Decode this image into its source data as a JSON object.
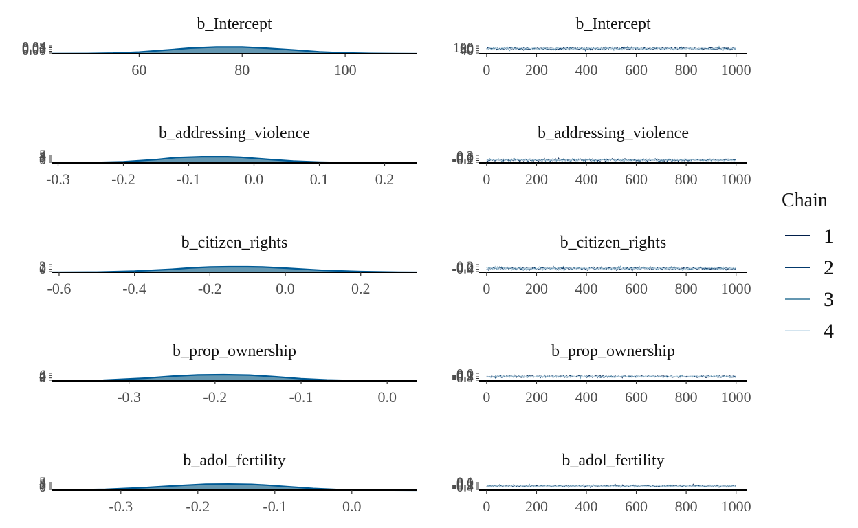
{
  "legend": {
    "title": "Chain",
    "items": [
      {
        "label": "1",
        "color": "#011f4b"
      },
      {
        "label": "2",
        "color": "#03396c"
      },
      {
        "label": "3",
        "color": "#6497b1"
      },
      {
        "label": "4",
        "color": "#d3e4ef"
      }
    ]
  },
  "colors": {
    "density_fill": "#6497b1",
    "density_line": "#005b96",
    "axis": "#000000"
  },
  "chart_data": [
    {
      "type": "area",
      "title": "b_Intercept",
      "xlim": [
        43,
        114
      ],
      "ylim": [
        0,
        0.04
      ],
      "xticks": [
        "60",
        "80",
        "100"
      ],
      "xtick_values": [
        60,
        80,
        100
      ],
      "yticks": [
        "0.00",
        "0.01",
        "0.02",
        "0.03",
        "0.04"
      ],
      "x": [
        43,
        50,
        55,
        60,
        65,
        70,
        75,
        80,
        85,
        90,
        95,
        100,
        105,
        110,
        114
      ],
      "y": [
        0.0003,
        0.001,
        0.003,
        0.008,
        0.017,
        0.027,
        0.032,
        0.032,
        0.026,
        0.018,
        0.009,
        0.004,
        0.0015,
        0.0005,
        0.0002
      ]
    },
    {
      "type": "line",
      "title": "b_Intercept",
      "xlim": [
        -30,
        1045
      ],
      "ylim": [
        40,
        100
      ],
      "xticks": [
        "0",
        "200",
        "400",
        "600",
        "800",
        "1000"
      ],
      "xtick_values": [
        0,
        200,
        400,
        600,
        800,
        1000
      ],
      "yticks": [
        "40",
        "60",
        "80",
        "100"
      ],
      "series": [
        {
          "name": "1",
          "center": 77,
          "spread": 9
        },
        {
          "name": "2",
          "center": 77,
          "spread": 9
        },
        {
          "name": "3",
          "center": 77,
          "spread": 9
        },
        {
          "name": "4",
          "center": 77,
          "spread": 9
        }
      ]
    },
    {
      "type": "area",
      "title": "b_addressing_violence",
      "xlim": [
        -0.31,
        0.25
      ],
      "ylim": [
        0,
        5
      ],
      "xticks": [
        "-0.3",
        "-0.2",
        "-0.1",
        "0.0",
        "0.1",
        "0.2"
      ],
      "xtick_values": [
        -0.3,
        -0.2,
        -0.1,
        0,
        0.1,
        0.2
      ],
      "yticks": [
        "0",
        "1",
        "2",
        "3",
        "4",
        "5"
      ],
      "x": [
        -0.31,
        -0.25,
        -0.2,
        -0.15,
        -0.12,
        -0.08,
        -0.04,
        -0.02,
        0.02,
        0.06,
        0.1,
        0.15,
        0.2,
        0.25
      ],
      "y": [
        0.02,
        0.2,
        0.7,
        2.0,
        3.2,
        3.7,
        3.7,
        3.4,
        2.2,
        1.1,
        0.5,
        0.15,
        0.05,
        0.01
      ]
    },
    {
      "type": "line",
      "title": "b_addressing_violence",
      "xlim": [
        -30,
        1045
      ],
      "ylim": [
        -0.2,
        0.2
      ],
      "xticks": [
        "0",
        "200",
        "400",
        "600",
        "800",
        "1000"
      ],
      "xtick_values": [
        0,
        200,
        400,
        600,
        800,
        1000
      ],
      "yticks": [
        "-0.2",
        "-0.1",
        "0.0",
        "0.1",
        "0.2"
      ],
      "series": [
        {
          "name": "1",
          "center": -0.06,
          "spread": 0.06
        },
        {
          "name": "2",
          "center": -0.06,
          "spread": 0.06
        },
        {
          "name": "3",
          "center": -0.06,
          "spread": 0.06
        },
        {
          "name": "4",
          "center": -0.06,
          "spread": 0.06
        }
      ]
    },
    {
      "type": "area",
      "title": "b_citizen_rights",
      "xlim": [
        -0.62,
        0.35
      ],
      "ylim": [
        0,
        3
      ],
      "xticks": [
        "-0.6",
        "-0.4",
        "-0.2",
        "0.0",
        "0.2"
      ],
      "xtick_values": [
        -0.6,
        -0.4,
        -0.2,
        0,
        0.2
      ],
      "yticks": [
        "0",
        "1",
        "2",
        "3"
      ],
      "x": [
        -0.62,
        -0.5,
        -0.4,
        -0.3,
        -0.25,
        -0.2,
        -0.15,
        -0.1,
        -0.06,
        0,
        0.1,
        0.2,
        0.3,
        0.35
      ],
      "y": [
        0.01,
        0.08,
        0.4,
        1.1,
        1.6,
        1.9,
        2.0,
        2.0,
        1.9,
        1.5,
        0.7,
        0.25,
        0.05,
        0.01
      ]
    },
    {
      "type": "line",
      "title": "b_citizen_rights",
      "xlim": [
        -30,
        1045
      ],
      "ylim": [
        -0.4,
        0.2
      ],
      "xticks": [
        "0",
        "200",
        "400",
        "600",
        "800",
        "1000"
      ],
      "xtick_values": [
        0,
        200,
        400,
        600,
        800,
        1000
      ],
      "yticks": [
        "-0.4",
        "-0.2",
        "0.0",
        "0.2"
      ],
      "series": [
        {
          "name": "1",
          "center": -0.12,
          "spread": 0.1
        },
        {
          "name": "2",
          "center": -0.12,
          "spread": 0.1
        },
        {
          "name": "3",
          "center": -0.12,
          "spread": 0.1
        },
        {
          "name": "4",
          "center": -0.12,
          "spread": 0.1
        }
      ]
    },
    {
      "type": "area",
      "title": "b_prop_ownership",
      "xlim": [
        -0.39,
        0.035
      ],
      "ylim": [
        0,
        6
      ],
      "xticks": [
        "-0.3",
        "-0.2",
        "-0.1",
        "0.0"
      ],
      "xtick_values": [
        -0.3,
        -0.2,
        -0.1,
        0
      ],
      "yticks": [
        "0",
        "2",
        "4",
        "6"
      ],
      "x": [
        -0.39,
        -0.33,
        -0.28,
        -0.25,
        -0.22,
        -0.19,
        -0.16,
        -0.13,
        -0.1,
        -0.07,
        -0.04,
        0,
        0.035
      ],
      "y": [
        0.05,
        0.5,
        2.0,
        3.4,
        4.3,
        4.5,
        4.2,
        3.0,
        1.6,
        0.7,
        0.25,
        0.05,
        0.01
      ]
    },
    {
      "type": "line",
      "title": "b_prop_ownership",
      "xlim": [
        -30,
        1045
      ],
      "ylim": [
        -0.4,
        0.0
      ],
      "xticks": [
        "0",
        "200",
        "400",
        "600",
        "800",
        "1000"
      ],
      "xtick_values": [
        0,
        200,
        400,
        600,
        800,
        1000
      ],
      "yticks": [
        "-0.4",
        "-0.3",
        "-0.2",
        "-0.1",
        "0.0"
      ],
      "series": [
        {
          "name": "1",
          "center": -0.19,
          "spread": 0.05
        },
        {
          "name": "2",
          "center": -0.19,
          "spread": 0.05
        },
        {
          "name": "3",
          "center": -0.19,
          "spread": 0.05
        },
        {
          "name": "4",
          "center": -0.19,
          "spread": 0.05
        }
      ]
    },
    {
      "type": "area",
      "title": "b_adol_fertility",
      "xlim": [
        -0.39,
        0.085
      ],
      "ylim": [
        0,
        5
      ],
      "xticks": [
        "-0.3",
        "-0.2",
        "-0.1",
        "0.0"
      ],
      "xtick_values": [
        -0.3,
        -0.2,
        -0.1,
        0
      ],
      "yticks": [
        "0",
        "1",
        "2",
        "3",
        "4",
        "5"
      ],
      "x": [
        -0.39,
        -0.32,
        -0.27,
        -0.22,
        -0.19,
        -0.16,
        -0.13,
        -0.11,
        -0.08,
        -0.05,
        -0.02,
        0.02,
        0.085
      ],
      "y": [
        0.05,
        0.5,
        1.5,
        2.9,
        3.6,
        3.7,
        3.5,
        3.0,
        2.0,
        1.0,
        0.4,
        0.1,
        0.01
      ]
    },
    {
      "type": "line",
      "title": "b_adol_fertility",
      "xlim": [
        -30,
        1045
      ],
      "ylim": [
        -0.4,
        0.1
      ],
      "xticks": [
        "0",
        "200",
        "400",
        "600",
        "800",
        "1000"
      ],
      "xtick_values": [
        0,
        200,
        400,
        600,
        800,
        1000
      ],
      "yticks": [
        "-0.4",
        "-0.3",
        "-0.2",
        "-0.1",
        "0.0",
        "0.1"
      ],
      "series": [
        {
          "name": "1",
          "center": -0.15,
          "spread": 0.06
        },
        {
          "name": "2",
          "center": -0.15,
          "spread": 0.06
        },
        {
          "name": "3",
          "center": -0.15,
          "spread": 0.06
        },
        {
          "name": "4",
          "center": -0.15,
          "spread": 0.06
        }
      ]
    }
  ]
}
